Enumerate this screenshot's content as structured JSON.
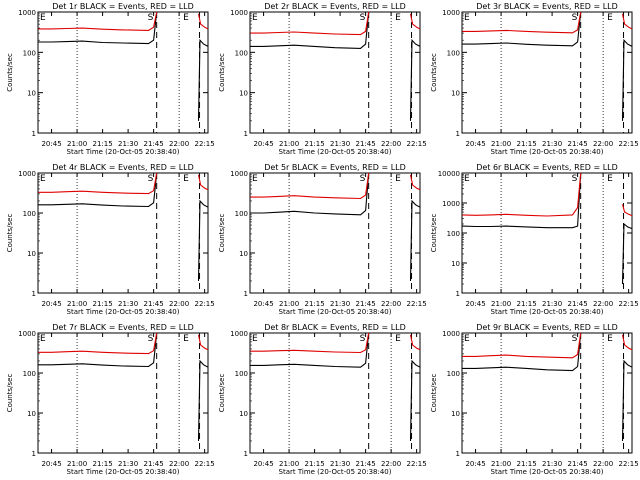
{
  "figure": {
    "colors": {
      "events": "#000000",
      "lld": "#e00000",
      "axis": "#000000",
      "background": "#ffffff"
    },
    "xticks": [
      "20:45",
      "21:00",
      "21:15",
      "21:30",
      "21:45",
      "22:00",
      "22:15"
    ],
    "xlabel": "Start Time (20-Oct-05 20:38:40)",
    "ylabel": "Counts/sec",
    "markers": {
      "start": "S",
      "end": "E",
      "left": "E"
    }
  },
  "chart_data": [
    {
      "type": "line",
      "title": "Det 1r BLACK = Events, RED = LLD",
      "xlabel": "Start Time (20-Oct-05 20:38:40)",
      "ylabel": "Counts/sec",
      "yscale": "log",
      "xlim": [
        20.617,
        22.283
      ],
      "ylim": [
        1,
        1000
      ],
      "yticks": [
        1,
        10,
        100,
        1000
      ],
      "xticks": [
        "20:45",
        "21:00",
        "21:15",
        "21:30",
        "21:45",
        "22:00",
        "22:15"
      ],
      "series": [
        {
          "name": "BLACK",
          "values": [
            [
              20.62,
              180
            ],
            [
              20.75,
              180
            ],
            [
              20.9,
              185
            ],
            [
              21.05,
              190
            ],
            [
              21.25,
              175
            ],
            [
              21.45,
              170
            ],
            [
              21.7,
              165
            ],
            [
              21.75,
              200
            ],
            [
              21.78,
              1000
            ]
          ]
        },
        {
          "name": "RED",
          "values": [
            [
              20.62,
              380
            ],
            [
              20.75,
              380
            ],
            [
              20.9,
              390
            ],
            [
              21.05,
              400
            ],
            [
              21.25,
              375
            ],
            [
              21.45,
              360
            ],
            [
              21.7,
              350
            ],
            [
              21.75,
              420
            ],
            [
              21.78,
              1000
            ]
          ]
        }
      ]
    },
    {
      "type": "line",
      "title": "Det 2r BLACK = Events, RED = LLD",
      "xlabel": "Start Time (20-Oct-05 20:38:40)",
      "ylabel": "Counts/sec",
      "yscale": "log",
      "xlim": [
        20.617,
        22.283
      ],
      "ylim": [
        1,
        1000
      ],
      "yticks": [
        1,
        10,
        100,
        1000
      ],
      "xticks": [
        "20:45",
        "21:00",
        "21:15",
        "21:30",
        "21:45",
        "22:00",
        "22:15"
      ],
      "series": [
        {
          "name": "BLACK",
          "values": [
            [
              20.62,
              140
            ],
            [
              20.75,
              140
            ],
            [
              20.9,
              145
            ],
            [
              21.05,
              150
            ],
            [
              21.25,
              140
            ],
            [
              21.45,
              130
            ],
            [
              21.7,
              125
            ],
            [
              21.75,
              160
            ],
            [
              21.78,
              1000
            ]
          ]
        },
        {
          "name": "RED",
          "values": [
            [
              20.62,
              300
            ],
            [
              20.75,
              300
            ],
            [
              20.9,
              310
            ],
            [
              21.05,
              320
            ],
            [
              21.25,
              300
            ],
            [
              21.45,
              285
            ],
            [
              21.7,
              275
            ],
            [
              21.75,
              330
            ],
            [
              21.78,
              1000
            ]
          ]
        }
      ]
    },
    {
      "type": "line",
      "title": "Det 3r BLACK = Events, RED = LLD",
      "xlabel": "Start Time (20-Oct-05 20:38:40)",
      "ylabel": "Counts/sec",
      "yscale": "log",
      "xlim": [
        20.617,
        22.283
      ],
      "ylim": [
        1,
        1000
      ],
      "yticks": [
        1,
        10,
        100,
        1000
      ],
      "xticks": [
        "20:45",
        "21:00",
        "21:15",
        "21:30",
        "21:45",
        "22:00",
        "22:15"
      ],
      "series": [
        {
          "name": "BLACK",
          "values": [
            [
              20.62,
              160
            ],
            [
              20.75,
              160
            ],
            [
              20.9,
              165
            ],
            [
              21.05,
              170
            ],
            [
              21.25,
              158
            ],
            [
              21.45,
              150
            ],
            [
              21.7,
              145
            ],
            [
              21.75,
              180
            ],
            [
              21.78,
              1000
            ]
          ]
        },
        {
          "name": "RED",
          "values": [
            [
              20.62,
              330
            ],
            [
              20.75,
              330
            ],
            [
              20.9,
              340
            ],
            [
              21.05,
              350
            ],
            [
              21.25,
              330
            ],
            [
              21.45,
              315
            ],
            [
              21.7,
              305
            ],
            [
              21.75,
              360
            ],
            [
              21.78,
              1000
            ]
          ]
        }
      ]
    },
    {
      "type": "line",
      "title": "Det 4r BLACK = Events, RED = LLD",
      "xlabel": "Start Time (20-Oct-05 20:38:40)",
      "ylabel": "Counts/sec",
      "yscale": "log",
      "xlim": [
        20.617,
        22.283
      ],
      "ylim": [
        1,
        1000
      ],
      "yticks": [
        1,
        10,
        100,
        1000
      ],
      "xticks": [
        "20:45",
        "21:00",
        "21:15",
        "21:30",
        "21:45",
        "22:00",
        "22:15"
      ],
      "series": [
        {
          "name": "BLACK",
          "values": [
            [
              20.62,
              160
            ],
            [
              20.75,
              160
            ],
            [
              20.9,
              165
            ],
            [
              21.05,
              170
            ],
            [
              21.25,
              158
            ],
            [
              21.45,
              150
            ],
            [
              21.7,
              145
            ],
            [
              21.75,
              180
            ],
            [
              21.78,
              1000
            ]
          ]
        },
        {
          "name": "RED",
          "values": [
            [
              20.62,
              330
            ],
            [
              20.75,
              330
            ],
            [
              20.9,
              340
            ],
            [
              21.05,
              350
            ],
            [
              21.25,
              330
            ],
            [
              21.45,
              315
            ],
            [
              21.7,
              305
            ],
            [
              21.75,
              360
            ],
            [
              21.78,
              1000
            ]
          ]
        }
      ]
    },
    {
      "type": "line",
      "title": "Det 5r BLACK = Events, RED = LLD",
      "xlabel": "Start Time (20-Oct-05 20:38:40)",
      "ylabel": "Counts/sec",
      "yscale": "log",
      "xlim": [
        20.617,
        22.283
      ],
      "ylim": [
        1,
        1000
      ],
      "yticks": [
        1,
        10,
        100,
        1000
      ],
      "xticks": [
        "20:45",
        "21:00",
        "21:15",
        "21:30",
        "21:45",
        "22:00",
        "22:15"
      ],
      "series": [
        {
          "name": "BLACK",
          "values": [
            [
              20.62,
              100
            ],
            [
              20.75,
              100
            ],
            [
              20.9,
              105
            ],
            [
              21.05,
              110
            ],
            [
              21.25,
              100
            ],
            [
              21.45,
              95
            ],
            [
              21.7,
              90
            ],
            [
              21.75,
              115
            ],
            [
              21.78,
              1000
            ]
          ]
        },
        {
          "name": "RED",
          "values": [
            [
              20.62,
              250
            ],
            [
              20.75,
              250
            ],
            [
              20.9,
              260
            ],
            [
              21.05,
              270
            ],
            [
              21.25,
              250
            ],
            [
              21.45,
              240
            ],
            [
              21.7,
              230
            ],
            [
              21.75,
              280
            ],
            [
              21.78,
              1000
            ]
          ]
        }
      ]
    },
    {
      "type": "line",
      "title": "Det 6r BLACK = Events, RED = LLD",
      "xlabel": "Start Time (20-Oct-05 20:38:40)",
      "ylabel": "Counts/sec",
      "yscale": "log",
      "xlim": [
        20.617,
        22.283
      ],
      "ylim": [
        1,
        10000
      ],
      "yticks": [
        1,
        10,
        100,
        1000,
        10000
      ],
      "xticks": [
        "20:45",
        "21:00",
        "21:15",
        "21:30",
        "21:45",
        "22:00",
        "22:15"
      ],
      "series": [
        {
          "name": "BLACK",
          "values": [
            [
              20.62,
              170
            ],
            [
              20.75,
              165
            ],
            [
              20.9,
              165
            ],
            [
              21.05,
              170
            ],
            [
              21.25,
              160
            ],
            [
              21.45,
              150
            ],
            [
              21.7,
              150
            ],
            [
              21.75,
              170
            ],
            [
              21.78,
              10000
            ]
          ]
        },
        {
          "name": "RED",
          "values": [
            [
              20.62,
              400
            ],
            [
              20.75,
              390
            ],
            [
              20.9,
              400
            ],
            [
              21.05,
              420
            ],
            [
              21.25,
              390
            ],
            [
              21.45,
              370
            ],
            [
              21.7,
              400
            ],
            [
              21.75,
              700
            ],
            [
              21.78,
              10000
            ]
          ]
        }
      ]
    },
    {
      "type": "line",
      "title": "Det 7r BLACK = Events, RED = LLD",
      "xlabel": "Start Time (20-Oct-05 20:38:40)",
      "ylabel": "Counts/sec",
      "yscale": "log",
      "xlim": [
        20.617,
        22.283
      ],
      "ylim": [
        1,
        1000
      ],
      "yticks": [
        1,
        10,
        100,
        1000
      ],
      "xticks": [
        "20:45",
        "21:00",
        "21:15",
        "21:30",
        "21:45",
        "22:00",
        "22:15"
      ],
      "series": [
        {
          "name": "BLACK",
          "values": [
            [
              20.62,
              160
            ],
            [
              20.75,
              160
            ],
            [
              20.9,
              165
            ],
            [
              21.05,
              170
            ],
            [
              21.25,
              158
            ],
            [
              21.45,
              150
            ],
            [
              21.7,
              145
            ],
            [
              21.75,
              180
            ],
            [
              21.78,
              1000
            ]
          ]
        },
        {
          "name": "RED",
          "values": [
            [
              20.62,
              330
            ],
            [
              20.75,
              330
            ],
            [
              20.9,
              340
            ],
            [
              21.05,
              350
            ],
            [
              21.25,
              330
            ],
            [
              21.45,
              315
            ],
            [
              21.7,
              305
            ],
            [
              21.75,
              360
            ],
            [
              21.78,
              1000
            ]
          ]
        }
      ]
    },
    {
      "type": "line",
      "title": "Det 8r BLACK = Events, RED = LLD",
      "xlabel": "Start Time (20-Oct-05 20:38:40)",
      "ylabel": "Counts/sec",
      "yscale": "log",
      "xlim": [
        20.617,
        22.283
      ],
      "ylim": [
        1,
        1000
      ],
      "yticks": [
        1,
        10,
        100,
        1000
      ],
      "xticks": [
        "20:45",
        "21:00",
        "21:15",
        "21:30",
        "21:45",
        "22:00",
        "22:15"
      ],
      "series": [
        {
          "name": "BLACK",
          "values": [
            [
              20.62,
              155
            ],
            [
              20.75,
              155
            ],
            [
              20.9,
              160
            ],
            [
              21.05,
              165
            ],
            [
              21.25,
              155
            ],
            [
              21.45,
              145
            ],
            [
              21.7,
              140
            ],
            [
              21.75,
              175
            ],
            [
              21.78,
              1000
            ]
          ]
        },
        {
          "name": "RED",
          "values": [
            [
              20.62,
              350
            ],
            [
              20.75,
              350
            ],
            [
              20.9,
              360
            ],
            [
              21.05,
              370
            ],
            [
              21.25,
              350
            ],
            [
              21.45,
              335
            ],
            [
              21.7,
              325
            ],
            [
              21.75,
              380
            ],
            [
              21.78,
              1000
            ]
          ]
        }
      ]
    },
    {
      "type": "line",
      "title": "Det 9r BLACK = Events, RED = LLD",
      "xlabel": "Start Time (20-Oct-05 20:38:40)",
      "ylabel": "Counts/sec",
      "yscale": "log",
      "xlim": [
        20.617,
        22.283
      ],
      "ylim": [
        1,
        1000
      ],
      "yticks": [
        1,
        10,
        100,
        1000
      ],
      "xticks": [
        "20:45",
        "21:00",
        "21:15",
        "21:30",
        "21:45",
        "22:00",
        "22:15"
      ],
      "series": [
        {
          "name": "BLACK",
          "values": [
            [
              20.62,
              130
            ],
            [
              20.75,
              130
            ],
            [
              20.9,
              135
            ],
            [
              21.05,
              140
            ],
            [
              21.25,
              130
            ],
            [
              21.45,
              120
            ],
            [
              21.7,
              115
            ],
            [
              21.75,
              145
            ],
            [
              21.78,
              1000
            ]
          ]
        },
        {
          "name": "RED",
          "values": [
            [
              20.62,
              260
            ],
            [
              20.75,
              260
            ],
            [
              20.9,
              270
            ],
            [
              21.05,
              280
            ],
            [
              21.25,
              260
            ],
            [
              21.45,
              250
            ],
            [
              21.7,
              240
            ],
            [
              21.75,
              290
            ],
            [
              21.78,
              1000
            ]
          ]
        }
      ]
    }
  ]
}
